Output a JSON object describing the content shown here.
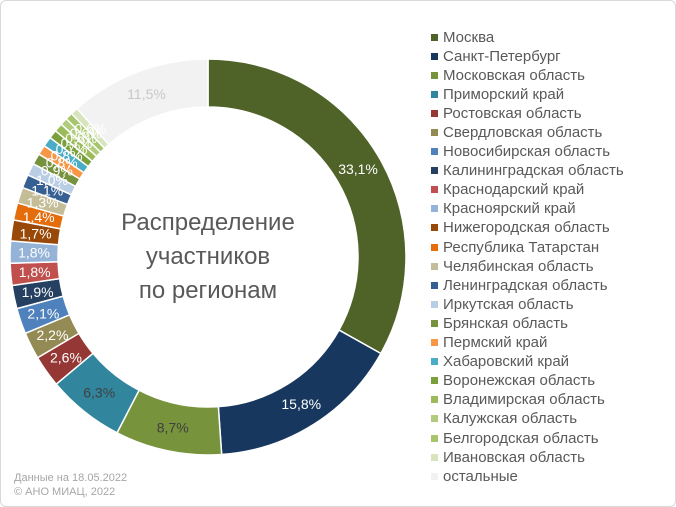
{
  "footer": {
    "date": "Данные на 18.05.2022",
    "copyright": "© АНО МИАЦ, 2022"
  },
  "chart_data": {
    "type": "pie",
    "donut": true,
    "title_lines": [
      "Распределение",
      "участников",
      "по регионам"
    ],
    "legend": {
      "position": "right"
    },
    "slices": [
      {
        "name": "Москва",
        "value": 33.1,
        "label": "33,1%",
        "color": "#4F6228",
        "label_color": "#ffffff"
      },
      {
        "name": "Санкт-Петербург",
        "value": 15.8,
        "label": "15,8%",
        "color": "#17375E",
        "label_color": "#ffffff"
      },
      {
        "name": "Московская область",
        "value": 8.7,
        "label": "8,7%",
        "color": "#77933C",
        "label_color": "#404040"
      },
      {
        "name": "Приморский край",
        "value": 6.3,
        "label": "6,3%",
        "color": "#31859C",
        "label_color": "#404040"
      },
      {
        "name": "Ростовская область",
        "value": 2.6,
        "label": "2,6%",
        "color": "#953735",
        "label_color": "#ffffff"
      },
      {
        "name": "Свердловская область",
        "value": 2.2,
        "label": "2,2%",
        "color": "#948A54",
        "label_color": "#ffffff"
      },
      {
        "name": "Новосибирская область",
        "value": 2.1,
        "label": "2,1%",
        "color": "#4F81BD",
        "label_color": "#ffffff"
      },
      {
        "name": "Калининградская область",
        "value": 1.9,
        "label": "1,9%",
        "color": "#254061",
        "label_color": "#ffffff"
      },
      {
        "name": "Краснодарский край",
        "value": 1.8,
        "label": "1,8%",
        "color": "#C0504D",
        "label_color": "#ffffff"
      },
      {
        "name": "Красноярский край",
        "value": 1.8,
        "label": "1,8%",
        "color": "#95B3D7",
        "label_color": "#ffffff"
      },
      {
        "name": "Нижегородская область",
        "value": 1.7,
        "label": "1,7%",
        "color": "#984807",
        "label_color": "#ffffff"
      },
      {
        "name": "Республика Татарстан",
        "value": 1.4,
        "label": "1,4%",
        "color": "#E46C0A",
        "label_color": "#ffffff"
      },
      {
        "name": "Челябинская область",
        "value": 1.3,
        "label": "1,3%",
        "color": "#C4BD97",
        "label_color": "#ffffff"
      },
      {
        "name": "Ленинградская область",
        "value": 1.1,
        "label": "1,1%",
        "color": "#376092",
        "label_color": "#ffffff"
      },
      {
        "name": "Иркутская область",
        "value": 1.0,
        "label": "1,0%",
        "color": "#B9CDE5",
        "label_color": "#ffffff"
      },
      {
        "name": "Брянская область",
        "value": 0.9,
        "label": "0,9%",
        "color": "#76923C",
        "label_color": "#ffffff"
      },
      {
        "name": "Пермский край",
        "value": 0.8,
        "label": "0,8%",
        "color": "#F79646",
        "label_color": "#ffffff"
      },
      {
        "name": "Хабаровский край",
        "value": 0.8,
        "label": "0,8%",
        "color": "#4BACC6",
        "label_color": "#ffffff"
      },
      {
        "name": "Воронежская область",
        "value": 0.7,
        "label": "0,7%",
        "color": "#7AA03B",
        "label_color": "#ffffff"
      },
      {
        "name": "Владимирская область",
        "value": 0.7,
        "label": "0,7%",
        "color": "#9BBB59",
        "label_color": "#ffffff"
      },
      {
        "name": "Калужская область",
        "value": 0.6,
        "label": "0,6%",
        "color": "#B2CC7E",
        "label_color": "#ffffff"
      },
      {
        "name": "Белгородская область",
        "value": 0.6,
        "label": "0,6%",
        "color": "#A6C66B",
        "label_color": "#ffffff"
      },
      {
        "name": "Ивановская область",
        "value": 0.6,
        "label": "0,6%",
        "color": "#D7E4BD",
        "label_color": "#ffffff"
      },
      {
        "name": "остальные",
        "value": 11.5,
        "label": "11,5%",
        "color": "#F2F2F2",
        "label_color": "#c8c8c8"
      }
    ]
  }
}
